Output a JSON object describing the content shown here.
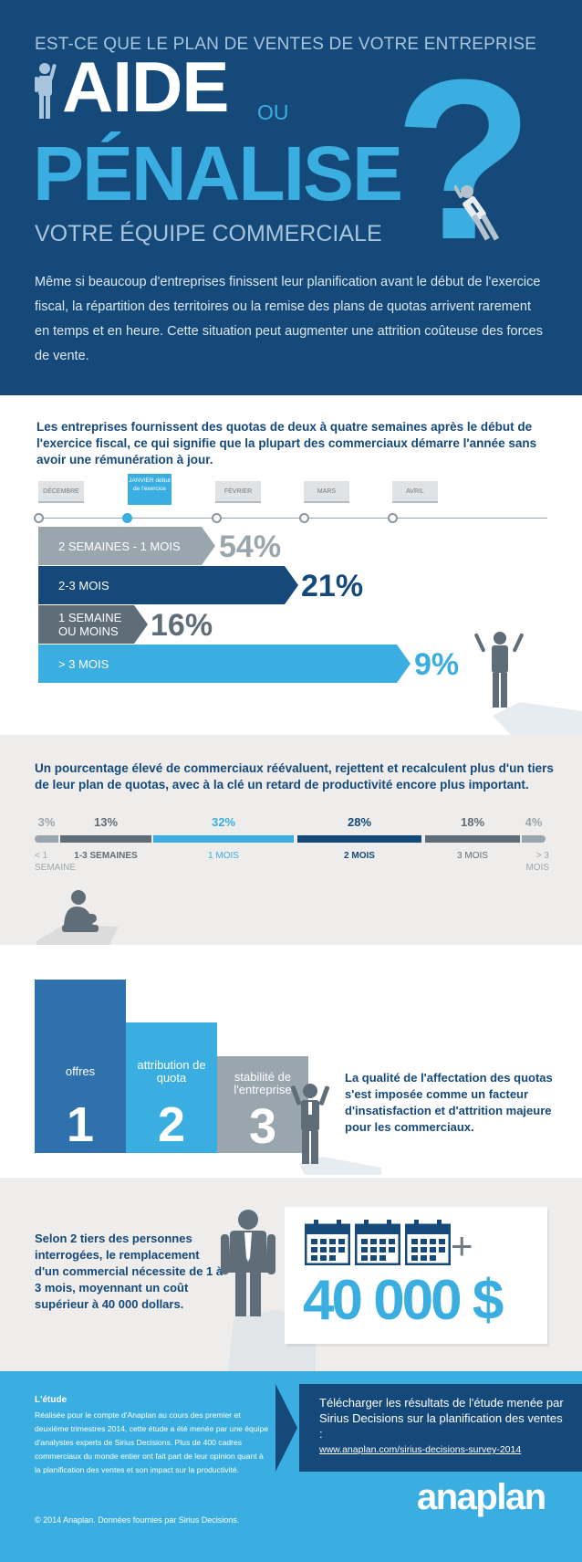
{
  "colors": {
    "navy": "#14497a",
    "cyan": "#3aaee0",
    "slate": "#5f6d78",
    "light_gray": "#9aa6ae",
    "beige": "#efedeb"
  },
  "header": {
    "kicker": "EST-CE QUE LE PLAN DE VENTES DE VOTRE ENTREPRISE",
    "word_aide": "AIDE",
    "word_ou": "OU",
    "word_penalise": "PÉNALISE",
    "question_mark": "?",
    "subtitle": "VOTRE ÉQUIPE COMMERCIALE",
    "intro": "Même si beaucoup d'entreprises finissent leur planification avant le début de l'exercice fiscal, la répartition des territoires ou la remise des plans de quotas arrivent rarement en temps et en heure. Cette situation peut augmenter une attrition coûteuse des forces de vente.",
    "icons": [
      "waving-man-icon",
      "climbing-man-icon"
    ]
  },
  "timeline": {
    "heading": "Les entreprises fournissent des quotas de deux à quatre semaines après le début de l'exercice fiscal, ce qui signifie que la plupart des commerciaux démarre l'année sans avoir une rémunération à jour.",
    "months": [
      {
        "label": "DÉCEMBRE"
      },
      {
        "label": "JANVIER début de l'exercice"
      },
      {
        "label": "FÉVRIER"
      },
      {
        "label": "MARS"
      },
      {
        "label": "AVRIL"
      }
    ],
    "bars": [
      {
        "label": "2 SEMAINES - 1 MOIS",
        "percent": "54%",
        "value": 54
      },
      {
        "label": "2-3 MOIS",
        "percent": "21%",
        "value": 21
      },
      {
        "label": "1 SEMAINE OU MOINS",
        "percent": "16%",
        "value": 16
      },
      {
        "label": "> 3 MOIS",
        "percent": "9%",
        "value": 9
      }
    ],
    "icons": [
      "frustrated-man-icon"
    ]
  },
  "distribution": {
    "heading": "Un pourcentage élevé de commerciaux réévaluent, rejettent et recalculent plus d'un tiers de leur plan de quotas, avec à la clé un retard de productivité encore plus important.",
    "segments": [
      {
        "percent": "3%",
        "value": 3,
        "label": "< 1 SEMAINE"
      },
      {
        "percent": "13%",
        "value": 13,
        "label": "1-3 SEMAINES"
      },
      {
        "percent": "32%",
        "value": 32,
        "label": "1 MOIS"
      },
      {
        "percent": "28%",
        "value": 28,
        "label": "2 MOIS"
      },
      {
        "percent": "18%",
        "value": 18,
        "label": "3 MOIS"
      },
      {
        "percent": "4%",
        "value": 4,
        "label": "> 3 MOIS"
      }
    ],
    "icons": [
      "sitting-man-icon"
    ]
  },
  "reasons": {
    "items": [
      {
        "label": "offres",
        "number": "1"
      },
      {
        "label": "attribution de quota",
        "number": "2"
      },
      {
        "label": "stabilité de l'entreprise",
        "number": "3"
      }
    ],
    "text": "La qualité de l'affectation des quotas s'est imposée comme un facteur d'insatisfaction et d'attrition majeure pour les commerciaux.",
    "icons": [
      "headache-man-icon"
    ]
  },
  "cost": {
    "text": "Selon 2 tiers des personnes interrogées, le remplacement d'un commercial nécessite de 1 à 3 mois, moyennant un coût supérieur à 40 000 dollars.",
    "plus": "+",
    "amount": "40 000 $",
    "icons": [
      "standing-man-icon",
      "calendar-icon"
    ]
  },
  "footer": {
    "study_title": "L'étude",
    "study_body": "Réalisée pour le compte d'Anaplan au cours des premier et deuxième trimestres 2014, cette étude a été menée par une équipe d'analystes experts de Sirius Decisions. Plus de 400 cadres commerciaux du monde entier ont fait part de leur opinion quant à la planification des ventes et son impact sur la productivité.",
    "copyright": "© 2014 Anaplan. Données fournies par Sirius Decisions.",
    "download_text": "Télécharger les résultats de l'étude menée par Sirius Decisions sur la planification des ventes :",
    "download_link": "www.anaplan.com/sirius-decisions-survey-2014",
    "logo": "anaplan"
  }
}
